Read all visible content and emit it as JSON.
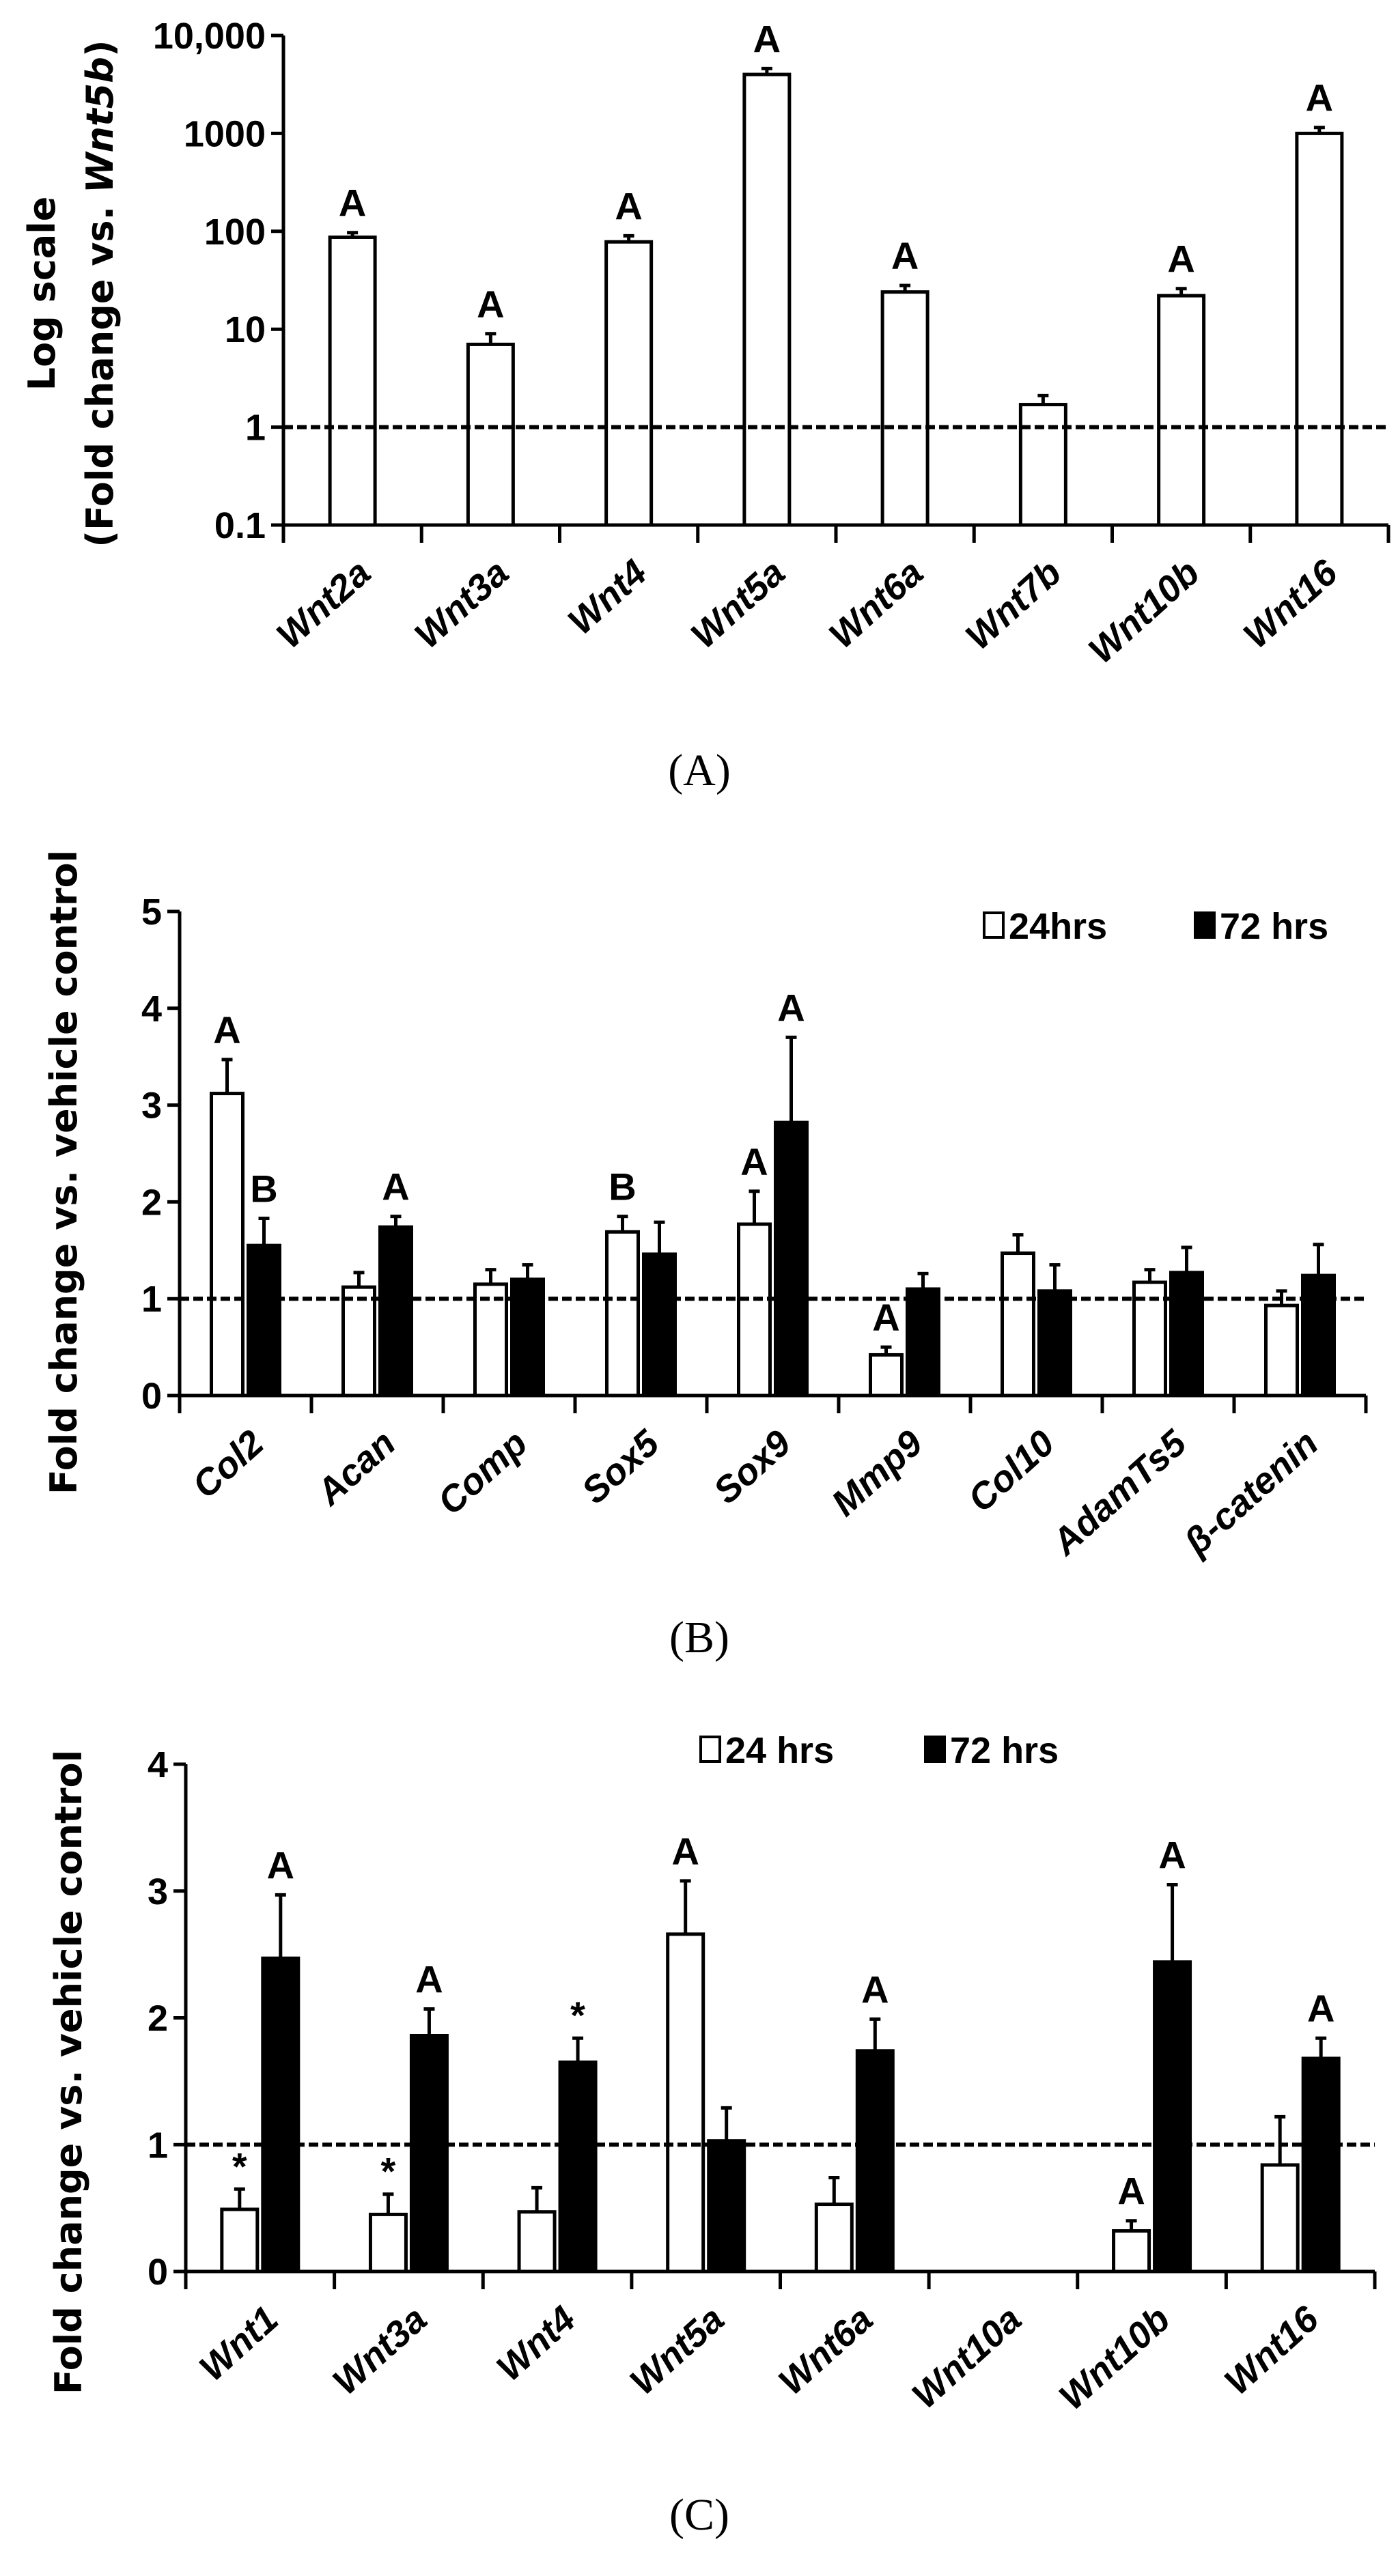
{
  "chart_data": [
    {
      "type": "bar",
      "panel_label": "(A)",
      "scale": "log",
      "ylabel_line1": "Log scale",
      "ylabel_line2_prefix": "(Fold change vs. ",
      "ylabel_line2_italic": "Wnt5b",
      "ylabel_line2_suffix": ")",
      "ylim": [
        0.1,
        10000
      ],
      "yticks": [
        0.1,
        1,
        10,
        100,
        1000,
        10000
      ],
      "ytick_labels": [
        "0.1",
        "1",
        "10",
        "100",
        "1000",
        "10,000"
      ],
      "reference_line": 1,
      "categories": [
        "Wnt2a",
        "Wnt3a",
        "Wnt4",
        "Wnt5a",
        "Wnt6a",
        "Wnt7b",
        "Wnt10b",
        "Wnt16"
      ],
      "series": [
        {
          "name": "",
          "fill": "#ffffff",
          "values": [
            87,
            7,
            78,
            4000,
            24,
            1.7,
            22,
            1000
          ],
          "error_upper": [
            97,
            9,
            90,
            4600,
            28,
            2.1,
            26,
            1150
          ],
          "annotations": [
            "A",
            "A",
            "A",
            "A",
            "A",
            "",
            "A",
            "A"
          ]
        }
      ]
    },
    {
      "type": "bar",
      "panel_label": "(B)",
      "scale": "linear",
      "ylabel": "Fold change vs. vehicle control",
      "ylim": [
        0,
        5
      ],
      "yticks": [
        0,
        1,
        2,
        3,
        4,
        5
      ],
      "ytick_labels": [
        "0",
        "1",
        "2",
        "3",
        "4",
        "5"
      ],
      "reference_line": 1,
      "legend_position": "top-right",
      "categories": [
        "Col2",
        "Acan",
        "Comp",
        "Sox5",
        "Sox9",
        "Mmp9",
        "Col10",
        "AdamTs5",
        "β-catenin"
      ],
      "series": [
        {
          "name": "24hrs",
          "fill": "#ffffff",
          "values": [
            3.12,
            1.12,
            1.15,
            1.69,
            1.77,
            0.42,
            1.47,
            1.17,
            0.93
          ],
          "error_upper": [
            3.47,
            1.27,
            1.3,
            1.85,
            2.11,
            0.5,
            1.66,
            1.3,
            1.08
          ],
          "annotations": [
            "A",
            "",
            "",
            "B",
            "A",
            "A",
            "",
            "",
            ""
          ]
        },
        {
          "name": "72 hrs",
          "fill": "#000000",
          "values": [
            1.55,
            1.74,
            1.2,
            1.46,
            2.82,
            1.1,
            1.08,
            1.27,
            1.24
          ],
          "error_upper": [
            1.83,
            1.85,
            1.35,
            1.79,
            3.7,
            1.26,
            1.35,
            1.53,
            1.56
          ],
          "annotations": [
            "B",
            "A",
            "",
            "",
            "A",
            "",
            "",
            "",
            ""
          ]
        }
      ]
    },
    {
      "type": "bar",
      "panel_label": "(C)",
      "scale": "linear",
      "ylabel": "Fold change vs. vehicle control",
      "ylim": [
        0,
        4
      ],
      "yticks": [
        0,
        1,
        2,
        3,
        4
      ],
      "ytick_labels": [
        "0",
        "1",
        "2",
        "3",
        "4"
      ],
      "reference_line": 1,
      "legend_position": "top-center",
      "categories": [
        "Wnt1",
        "Wnt3a",
        "Wnt4",
        "Wnt5a",
        "Wnt6a",
        "Wnt10a",
        "Wnt10b",
        "Wnt16"
      ],
      "series": [
        {
          "name": "24 hrs",
          "fill": "#ffffff",
          "values": [
            0.49,
            0.45,
            0.47,
            2.66,
            0.53,
            null,
            0.32,
            0.84
          ],
          "error_upper": [
            0.65,
            0.61,
            0.66,
            3.08,
            0.74,
            null,
            0.4,
            1.22
          ],
          "annotations": [
            "*",
            "*",
            "",
            "A",
            "",
            "",
            "A",
            ""
          ]
        },
        {
          "name": "72 hrs",
          "fill": "#000000",
          "values": [
            2.47,
            1.86,
            1.65,
            1.03,
            1.74,
            null,
            2.44,
            1.68
          ],
          "error_upper": [
            2.97,
            2.07,
            1.84,
            1.29,
            1.99,
            null,
            3.05,
            1.84
          ],
          "annotations": [
            "A",
            "A",
            "*",
            "",
            "A",
            "",
            "A",
            "A"
          ]
        }
      ]
    }
  ]
}
